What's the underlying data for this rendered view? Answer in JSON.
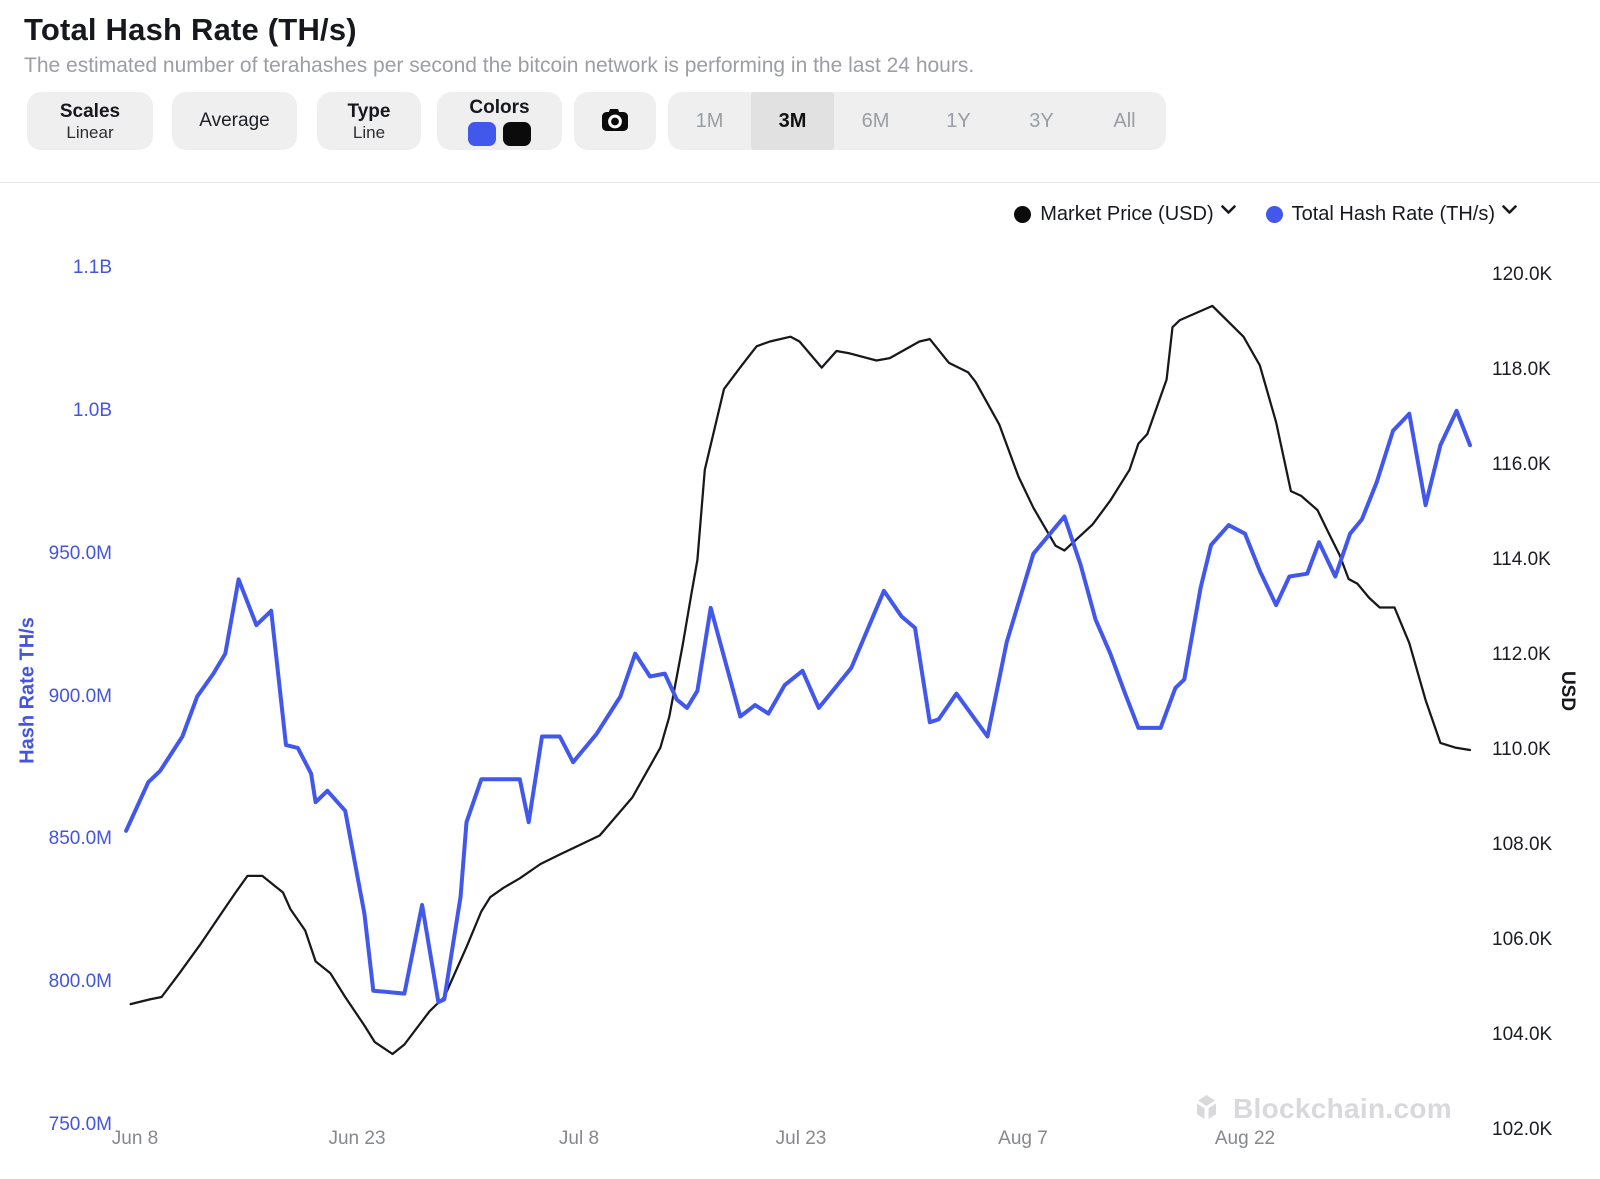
{
  "header": {
    "title": "Total Hash Rate (TH/s)",
    "subtitle": "The estimated number of terahashes per second the bitcoin network is performing in the last 24 hours."
  },
  "toolbar": {
    "scales": {
      "label": "Scales",
      "value": "Linear"
    },
    "average_label": "Average",
    "type": {
      "label": "Type",
      "value": "Line"
    },
    "colors": {
      "label": "Colors",
      "swatches": [
        "#4257ec",
        "#0b0b0c"
      ]
    },
    "camera_icon": "camera-icon",
    "ranges": [
      "1M",
      "3M",
      "6M",
      "1Y",
      "3Y",
      "All"
    ],
    "active_range": "3M"
  },
  "legend": [
    {
      "label": "Market Price (USD)",
      "color": "#0b0b0c"
    },
    {
      "label": "Total Hash Rate (TH/s)",
      "color": "#4257ec"
    }
  ],
  "chart_data": {
    "type": "line",
    "title": "Total Hash Rate (TH/s) vs Market Price (USD), last 3 months",
    "x_axis": {
      "unit": "days since Jun 8",
      "domain_days": [
        -0.6,
        90.2
      ],
      "ticks": [
        {
          "d": 0,
          "label": "Jun 8"
        },
        {
          "d": 15,
          "label": "Jun 23"
        },
        {
          "d": 30,
          "label": "Jul 8"
        },
        {
          "d": 45,
          "label": "Jul 23"
        },
        {
          "d": 60,
          "label": "Aug 7"
        },
        {
          "d": 75,
          "label": "Aug 22"
        }
      ]
    },
    "left_axis": {
      "title": "Hash Rate TH/s",
      "color": "#4355e0",
      "unit": "TH/s",
      "tick_labels": [
        "1.1B",
        "1.0B",
        "950.0M",
        "900.0M",
        "850.0M",
        "800.0M",
        "750.0M"
      ],
      "tick_values_M": [
        1050,
        1000,
        950,
        900,
        850,
        800,
        750
      ],
      "range_M": [
        750,
        1050
      ]
    },
    "right_axis": {
      "title": "USD",
      "color": "#1b1d22",
      "unit": "USD",
      "tick_labels": [
        "120.0K",
        "118.0K",
        "116.0K",
        "114.0K",
        "112.0K",
        "110.0K",
        "108.0K",
        "106.0K",
        "104.0K",
        "102.0K"
      ],
      "tick_values_K": [
        120,
        118,
        116,
        114,
        112,
        110,
        108,
        106,
        104,
        102
      ],
      "range_K": [
        102,
        120
      ]
    },
    "grid": false,
    "legend_position": "top-right",
    "series": [
      {
        "name": "Market Price (USD)",
        "color": "#17181b",
        "axis": "right",
        "unit": "K USD",
        "stroke_width": 2.25,
        "points": [
          [
            -0.3,
            104.65
          ],
          [
            1,
            104.75
          ],
          [
            1.8,
            104.8
          ],
          [
            3,
            105.3
          ],
          [
            4.4,
            105.9
          ],
          [
            5.7,
            106.5
          ],
          [
            6.8,
            107
          ],
          [
            7.6,
            107.35
          ],
          [
            8.6,
            107.35
          ],
          [
            10,
            107
          ],
          [
            10.5,
            106.65
          ],
          [
            11.5,
            106.2
          ],
          [
            12.2,
            105.55
          ],
          [
            13.2,
            105.3
          ],
          [
            14.2,
            104.8
          ],
          [
            15.5,
            104.2
          ],
          [
            16.2,
            103.85
          ],
          [
            17.4,
            103.6
          ],
          [
            18.2,
            103.8
          ],
          [
            19.9,
            104.5
          ],
          [
            20.9,
            104.8
          ],
          [
            22.4,
            105.85
          ],
          [
            23.4,
            106.6
          ],
          [
            24,
            106.9
          ],
          [
            24.9,
            107.1
          ],
          [
            26,
            107.3
          ],
          [
            27.4,
            107.6
          ],
          [
            28.7,
            107.8
          ],
          [
            31.4,
            108.2
          ],
          [
            33.6,
            109
          ],
          [
            35.5,
            110.05
          ],
          [
            36.1,
            110.7
          ],
          [
            37,
            112.2
          ],
          [
            37.6,
            113.3
          ],
          [
            38,
            114
          ],
          [
            38.5,
            115.9
          ],
          [
            39.8,
            117.6
          ],
          [
            41,
            118.1
          ],
          [
            42,
            118.5
          ],
          [
            42.9,
            118.6
          ],
          [
            44.3,
            118.7
          ],
          [
            44.9,
            118.6
          ],
          [
            46.4,
            118.05
          ],
          [
            47.4,
            118.4
          ],
          [
            48.3,
            118.35
          ],
          [
            50.1,
            118.2
          ],
          [
            51,
            118.25
          ],
          [
            53,
            118.6
          ],
          [
            53.7,
            118.65
          ],
          [
            55,
            118.15
          ],
          [
            56.3,
            117.95
          ],
          [
            56.8,
            117.75
          ],
          [
            58.4,
            116.85
          ],
          [
            59.7,
            115.75
          ],
          [
            60.7,
            115.1
          ],
          [
            62.2,
            114.3
          ],
          [
            62.8,
            114.2
          ],
          [
            64.7,
            114.75
          ],
          [
            65.9,
            115.25
          ],
          [
            67.2,
            115.9
          ],
          [
            67.8,
            116.45
          ],
          [
            68.4,
            116.65
          ],
          [
            69.7,
            117.8
          ],
          [
            70.1,
            118.9
          ],
          [
            70.6,
            119.05
          ],
          [
            72.8,
            119.35
          ],
          [
            74.9,
            118.7
          ],
          [
            76,
            118.1
          ],
          [
            77.1,
            116.9
          ],
          [
            78.1,
            115.45
          ],
          [
            78.8,
            115.35
          ],
          [
            79.9,
            115.05
          ],
          [
            80.6,
            114.6
          ],
          [
            81.4,
            114.1
          ],
          [
            82,
            113.6
          ],
          [
            82.6,
            113.5
          ],
          [
            83.4,
            113.2
          ],
          [
            84.1,
            113
          ],
          [
            85.1,
            113
          ],
          [
            86.1,
            112.25
          ],
          [
            87.2,
            111.05
          ],
          [
            88.2,
            110.15
          ],
          [
            89.2,
            110.05
          ],
          [
            90.2,
            110
          ]
        ]
      },
      {
        "name": "Total Hash Rate (TH/s)",
        "color": "#4257ec",
        "axis": "left",
        "unit": "M TH/s",
        "stroke_width": 4,
        "points": [
          [
            -0.6,
            853
          ],
          [
            0.9,
            870
          ],
          [
            1.7,
            874
          ],
          [
            3.2,
            886
          ],
          [
            4.2,
            900
          ],
          [
            5.3,
            908
          ],
          [
            6.1,
            915
          ],
          [
            7,
            941
          ],
          [
            8.2,
            925
          ],
          [
            9.2,
            930
          ],
          [
            10.2,
            883
          ],
          [
            11,
            882
          ],
          [
            11.9,
            873
          ],
          [
            12.2,
            863
          ],
          [
            13,
            867
          ],
          [
            14.2,
            860
          ],
          [
            15.5,
            824
          ],
          [
            16.1,
            797
          ],
          [
            18.2,
            796
          ],
          [
            19.4,
            827
          ],
          [
            20.5,
            793
          ],
          [
            20.9,
            794
          ],
          [
            22,
            830
          ],
          [
            22.4,
            856
          ],
          [
            23.4,
            871
          ],
          [
            26,
            871
          ],
          [
            26.6,
            856
          ],
          [
            27.5,
            886
          ],
          [
            28.7,
            886
          ],
          [
            29.6,
            877
          ],
          [
            31.2,
            887
          ],
          [
            32.8,
            900
          ],
          [
            33.8,
            915
          ],
          [
            34.8,
            907
          ],
          [
            35.8,
            908
          ],
          [
            36.6,
            899
          ],
          [
            37.3,
            896
          ],
          [
            38,
            902
          ],
          [
            38.9,
            931
          ],
          [
            40.9,
            893
          ],
          [
            41.9,
            897
          ],
          [
            42.8,
            894
          ],
          [
            43.9,
            904
          ],
          [
            45.1,
            909
          ],
          [
            46.2,
            896
          ],
          [
            48.4,
            910
          ],
          [
            50.6,
            937
          ],
          [
            51.8,
            928
          ],
          [
            52.7,
            924
          ],
          [
            53.7,
            891
          ],
          [
            54.3,
            892
          ],
          [
            55.5,
            901
          ],
          [
            57.6,
            886
          ],
          [
            58.9,
            919
          ],
          [
            60.7,
            950
          ],
          [
            62.8,
            963
          ],
          [
            63.9,
            946
          ],
          [
            64.9,
            927
          ],
          [
            65.9,
            915
          ],
          [
            66.9,
            901
          ],
          [
            67.8,
            889
          ],
          [
            69.3,
            889
          ],
          [
            70.3,
            903
          ],
          [
            70.9,
            906
          ],
          [
            72,
            938
          ],
          [
            72.7,
            953
          ],
          [
            73.9,
            960
          ],
          [
            75,
            957
          ],
          [
            76,
            944
          ],
          [
            77.1,
            932
          ],
          [
            78,
            942
          ],
          [
            79.2,
            943
          ],
          [
            80,
            954
          ],
          [
            81.1,
            942
          ],
          [
            82.1,
            957
          ],
          [
            82.9,
            962
          ],
          [
            83.9,
            975
          ],
          [
            85,
            993
          ],
          [
            86.1,
            999
          ],
          [
            87.2,
            967
          ],
          [
            88.2,
            988
          ],
          [
            89.3,
            1000
          ],
          [
            90.2,
            988
          ]
        ]
      }
    ]
  },
  "watermark": {
    "text": "Blockchain.com"
  }
}
